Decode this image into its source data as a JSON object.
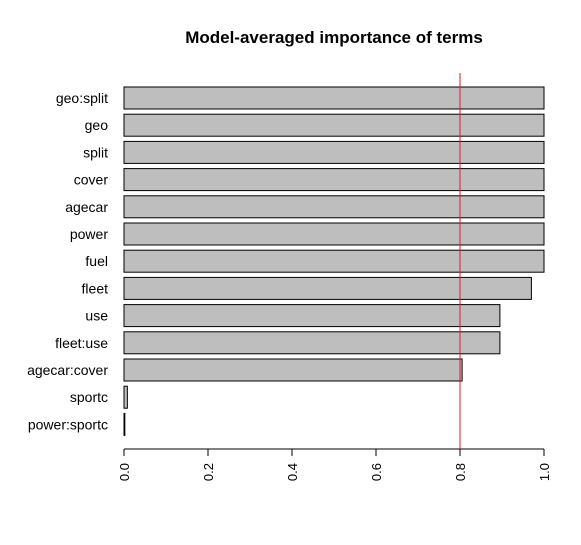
{
  "chart_data": {
    "type": "bar",
    "orientation": "horizontal",
    "title": "Model-averaged importance of terms",
    "xlabel": "",
    "ylabel": "",
    "xlim": [
      0,
      1
    ],
    "categories": [
      "geo:split",
      "geo",
      "split",
      "cover",
      "agecar",
      "power",
      "fuel",
      "fleet",
      "use",
      "fleet:use",
      "agecar:cover",
      "sportc",
      "power:sportc"
    ],
    "values": [
      1.0,
      1.0,
      1.0,
      1.0,
      1.0,
      1.0,
      1.0,
      0.97,
      0.895,
      0.895,
      0.805,
      0.008,
      0.002
    ],
    "x_ticks": [
      0,
      0.2,
      0.4,
      0.6,
      0.8,
      1
    ],
    "x_tick_labels": [
      "0.0",
      "0.2",
      "0.4",
      "0.6",
      "0.8",
      "1.0"
    ],
    "reference_line": {
      "x": 0.8,
      "color": "#e31a1c"
    },
    "bar_color": "#bebebe",
    "bar_border_color": "#000000",
    "grid": false,
    "legend": false
  }
}
